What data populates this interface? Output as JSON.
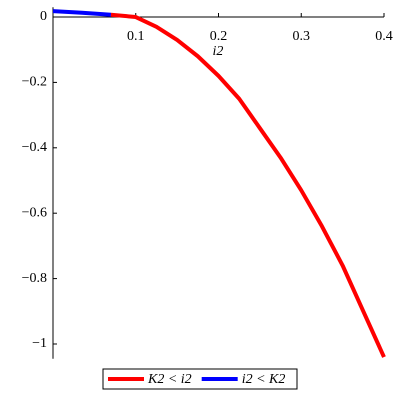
{
  "chart_data": {
    "type": "line",
    "x_label": "i2",
    "xlim": [
      0,
      0.4
    ],
    "ylim": [
      -1.045,
      0.03
    ],
    "xticks": [
      0.1,
      0.2,
      0.3,
      0.4
    ],
    "yticks": [
      0,
      {
        "value": -0.2,
        "label": "−0.2"
      },
      {
        "value": -0.4,
        "label": "−0.4"
      },
      {
        "value": -0.6,
        "label": "−0.6"
      },
      {
        "value": -0.8,
        "label": "−0.8"
      },
      {
        "value": -1,
        "label": "−1"
      }
    ],
    "series": [
      {
        "name": "K2 < i2",
        "color": "#ff0000",
        "x": [
          0.07,
          0.1,
          0.125,
          0.15,
          0.175,
          0.2,
          0.225,
          0.25,
          0.275,
          0.3,
          0.325,
          0.35,
          0.375,
          0.4
        ],
        "values": [
          0.007,
          0,
          -0.03,
          -0.07,
          -0.12,
          -0.18,
          -0.25,
          -0.34,
          -0.43,
          -0.53,
          -0.64,
          -0.76,
          -0.9,
          -1.04
        ]
      },
      {
        "name": "i2 < K2",
        "color": "#0000ff",
        "x": [
          0,
          0.035,
          0.07
        ],
        "values": [
          0.018,
          0.013,
          0.007
        ]
      }
    ]
  }
}
